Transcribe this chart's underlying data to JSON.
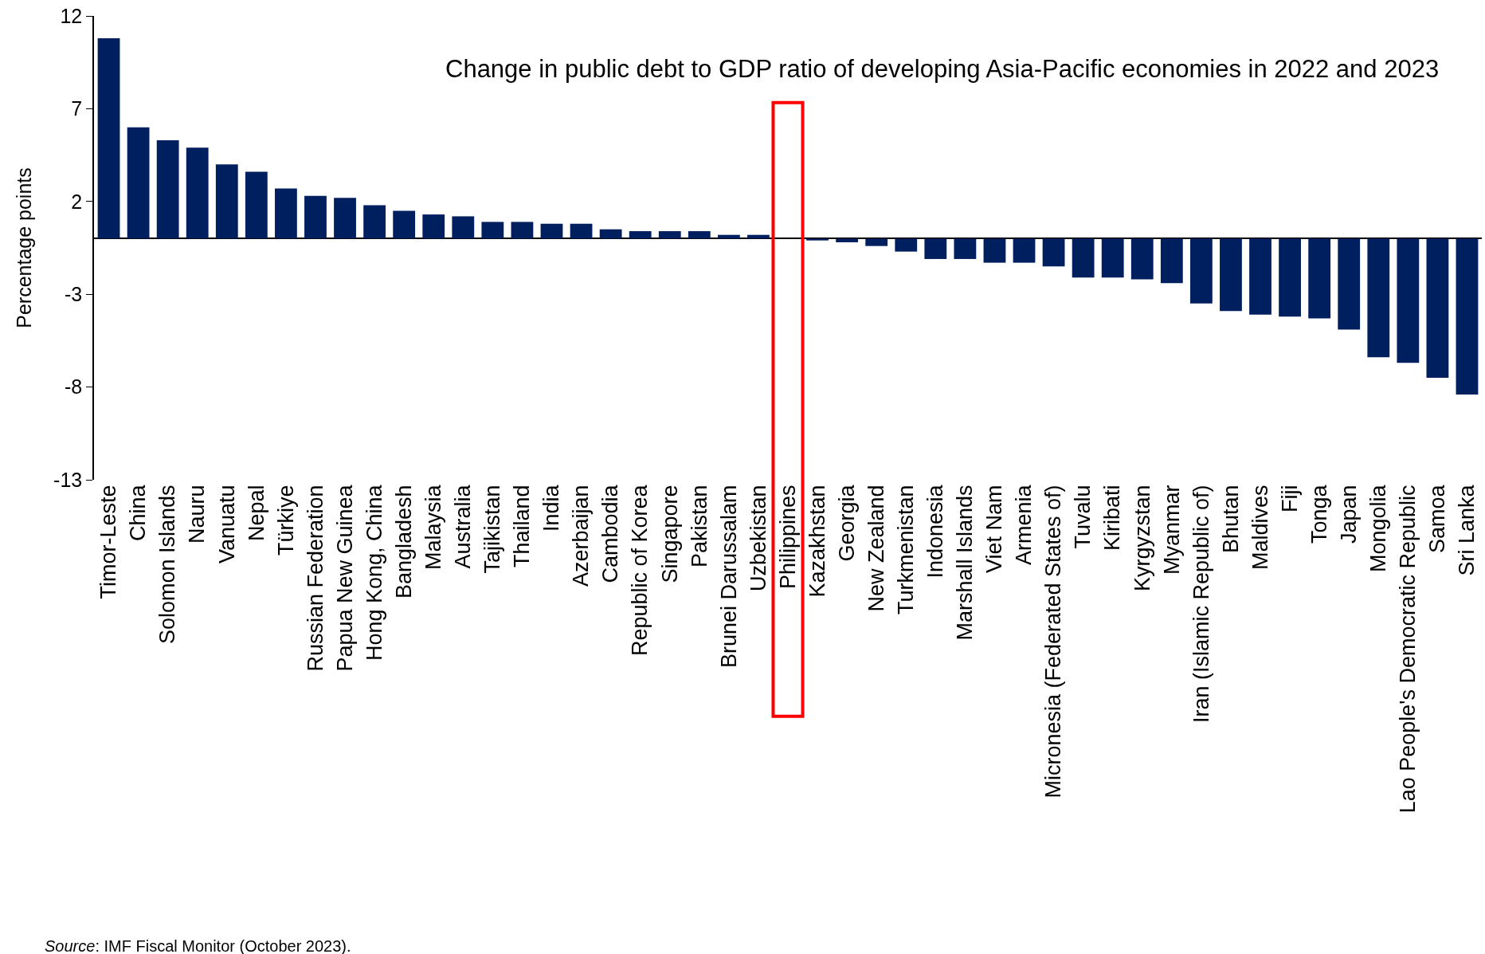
{
  "chart_data": {
    "type": "bar",
    "title": "Change in public debt to GDP ratio of developing Asia-Pacific economies in 2022 and 2023",
    "ylabel": "Percentage points",
    "categories": [
      "Timor-Leste",
      "China",
      "Solomon Islands",
      "Nauru",
      "Vanuatu",
      "Nepal",
      "Türkiye",
      "Russian Federation",
      "Papua New Guinea",
      "Hong Kong, China",
      "Bangladesh",
      "Malaysia",
      "Australia",
      "Tajikistan",
      "Thailand",
      "India",
      "Azerbaijan",
      "Cambodia",
      "Republic of Korea",
      "Singapore",
      "Pakistan",
      "Brunei Darussalam",
      "Uzbekistan",
      "Philippines",
      "Kazakhstan",
      "Georgia",
      "New Zealand",
      "Turkmenistan",
      "Indonesia",
      "Marshall Islands",
      "Viet Nam",
      "Armenia",
      "Micronesia (Federated States of)",
      "Tuvalu",
      "Kiribati",
      "Kyrgyzstan",
      "Myanmar",
      "Iran (Islamic Republic of)",
      "Bhutan",
      "Maldives",
      "Fiji",
      "Tonga",
      "Japan",
      "Mongolia",
      "Lao People's Democratic Republic",
      "Samoa",
      "Sri Lanka"
    ],
    "values": [
      10.8,
      6.0,
      5.3,
      4.9,
      4.0,
      3.6,
      2.7,
      2.3,
      2.2,
      1.8,
      1.5,
      1.3,
      1.2,
      0.9,
      0.9,
      0.8,
      0.8,
      0.5,
      0.4,
      0.4,
      0.4,
      0.2,
      0.2,
      0,
      -0.1,
      -0.2,
      -0.4,
      -0.7,
      -1.1,
      -1.1,
      -1.3,
      -1.3,
      -1.5,
      -2.1,
      -2.1,
      -2.2,
      -2.4,
      -3.5,
      -3.9,
      -4.1,
      -4.2,
      -4.3,
      -4.9,
      -6.4,
      -6.7,
      -7.5,
      -8.4
    ],
    "color": "#001f5f",
    "ylim": [
      -13,
      12
    ],
    "yticks": [
      -13,
      -8,
      -3,
      2,
      7,
      12
    ],
    "annotations": [
      "Source: IMF Fiscal Monitor (October 2023)."
    ]
  }
}
